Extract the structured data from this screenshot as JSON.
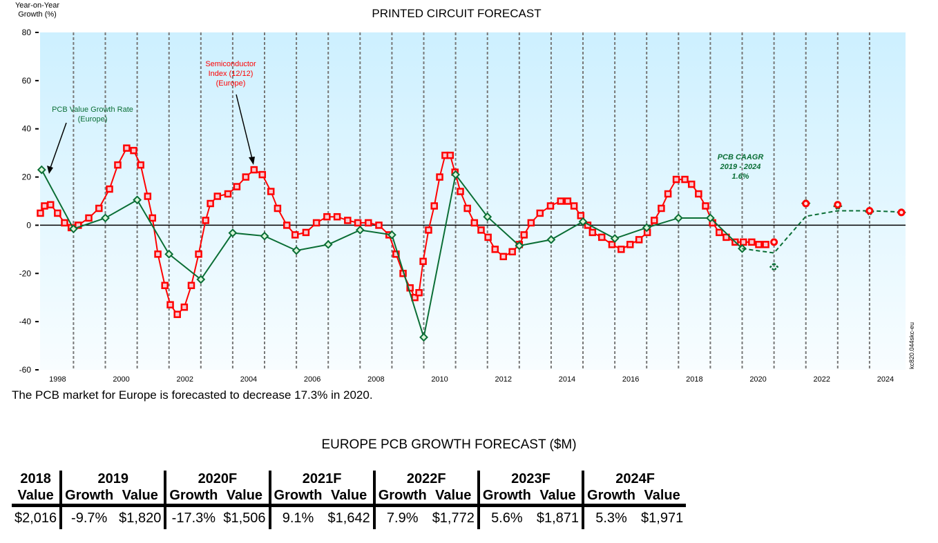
{
  "chart_data": {
    "type": "line",
    "title": "PRINTED CIRCUIT FORECAST",
    "ylabel": "Year-on-Year Growth (%)",
    "xlabel": "",
    "ylim": [
      -60,
      80
    ],
    "yticks": [
      80,
      60,
      40,
      20,
      0,
      -20,
      -40,
      -60
    ],
    "xlim": [
      1997.0,
      2024.15
    ],
    "xticks": [
      {
        "label": "1998",
        "x": 1997.5
      },
      {
        "label": "2000",
        "x": 1999.5
      },
      {
        "label": "2002",
        "x": 2001.5
      },
      {
        "label": "2004",
        "x": 2003.5
      },
      {
        "label": "2006",
        "x": 2005.5
      },
      {
        "label": "2008",
        "x": 2007.5
      },
      {
        "label": "2010",
        "x": 2009.5
      },
      {
        "label": "2012",
        "x": 2011.5
      },
      {
        "label": "2014",
        "x": 2013.5
      },
      {
        "label": "2016",
        "x": 2015.5
      },
      {
        "label": "2018",
        "x": 2017.5
      },
      {
        "label": "2020",
        "x": 2019.5
      },
      {
        "label": "2022",
        "x": 2021.5
      },
      {
        "label": "2024",
        "x": 2023.5
      }
    ],
    "year_gridlines": [
      1998,
      1999,
      2000,
      2001,
      2002,
      2003,
      2004,
      2005,
      2006,
      2007,
      2008,
      2009,
      2010,
      2011,
      2012,
      2013,
      2014,
      2015,
      2016,
      2017,
      2018,
      2019,
      2020,
      2021,
      2022,
      2023
    ],
    "grid": true,
    "series": [
      {
        "name": "PCB Value Growth Rate (Europe)",
        "color": "#0a6e35",
        "marker": "diamond",
        "style": "solid",
        "x": [
          1997.0,
          1998.0,
          1999.0,
          2000.0,
          2001.0,
          2002.0,
          2003.0,
          2004.0,
          2005.0,
          2006.0,
          2007.0,
          2008.0,
          2009.0,
          2010.0,
          2011.0,
          2012.0,
          2013.0,
          2014.0,
          2015.0,
          2016.0,
          2017.0,
          2018.0,
          2019.0
        ],
        "values": [
          23,
          -1.5,
          3,
          10.5,
          -12,
          -22.5,
          -3.2,
          -4.5,
          -10.5,
          -8,
          -2,
          -4,
          -46.5,
          21,
          3.5,
          -8.5,
          -6,
          1.5,
          -5.5,
          -1,
          3,
          3,
          -9.7
        ]
      },
      {
        "name": "PCB Forecast (dashed)",
        "color": "#0a6e35",
        "marker": "none",
        "style": "dashed",
        "x": [
          2019.0,
          2020.0,
          2021.0,
          2022.0,
          2023.0,
          2024.0
        ],
        "values": [
          -9.7,
          -11.5,
          3.7,
          6,
          6,
          5.5
        ]
      },
      {
        "name": "PCB Forecast Annual",
        "color": "#0a6e35",
        "marker": "diamond-dashed",
        "style": "none",
        "x": [
          2020.0,
          2021.0,
          2022.0,
          2023.0,
          2024.0
        ],
        "values": [
          -17.3,
          9.1,
          7.9,
          5.6,
          5.3
        ]
      },
      {
        "name": "Semiconductor Forecast",
        "color": "#ff0000",
        "marker": "circle",
        "style": "none",
        "x": [
          2020.0,
          2021.0,
          2022.0,
          2023.0,
          2024.0
        ],
        "values": [
          -7,
          9,
          8.5,
          6,
          5.3
        ]
      },
      {
        "name": "Semiconductor Index (12/12) (Europe)",
        "color": "#ff0000",
        "marker": "square",
        "style": "solid",
        "x": [
          1996.96,
          1997.09,
          1997.28,
          1997.5,
          1997.72,
          1997.93,
          1998.15,
          1998.48,
          1998.8,
          1999.13,
          1999.39,
          1999.67,
          1999.89,
          2000.11,
          2000.33,
          2000.48,
          2000.65,
          2000.87,
          2001.04,
          2001.26,
          2001.48,
          2001.7,
          2001.93,
          2002.15,
          2002.3,
          2002.52,
          2002.85,
          2003.13,
          2003.41,
          2003.67,
          2003.93,
          2004.2,
          2004.41,
          2004.7,
          2004.96,
          2005.3,
          2005.63,
          2005.96,
          2006.28,
          2006.61,
          2006.93,
          2007.26,
          2007.59,
          2007.91,
          2008.13,
          2008.35,
          2008.57,
          2008.72,
          2008.85,
          2008.98,
          2009.15,
          2009.33,
          2009.5,
          2009.67,
          2009.83,
          2009.98,
          2010.15,
          2010.37,
          2010.59,
          2010.8,
          2011.02,
          2011.24,
          2011.5,
          2011.78,
          2012.0,
          2012.15,
          2012.37,
          2012.65,
          2012.98,
          2013.3,
          2013.52,
          2013.72,
          2013.93,
          2014.15,
          2014.3,
          2014.59,
          2014.91,
          2015.2,
          2015.48,
          2015.76,
          2016.02,
          2016.24,
          2016.46,
          2016.67,
          2016.93,
          2017.2,
          2017.41,
          2017.63,
          2017.85,
          2018.07,
          2018.28,
          2018.5,
          2018.78,
          2019.04,
          2019.3,
          2019.52,
          2019.74
        ],
        "values": [
          5,
          8,
          8.5,
          5,
          1,
          -1,
          0,
          3,
          7,
          15,
          25,
          32,
          31,
          25,
          12,
          3,
          -12,
          -25,
          -33,
          -37,
          -34,
          -25,
          -12,
          2,
          9,
          12,
          13,
          16,
          20,
          23,
          21,
          14,
          7,
          0,
          -4,
          -3,
          1,
          3.5,
          3.5,
          2,
          1,
          1,
          0,
          -4,
          -12,
          -20,
          -26,
          -30,
          -28,
          -15,
          -2,
          8,
          20,
          29,
          29,
          22,
          14,
          7,
          1,
          -2,
          -5,
          -10,
          -13,
          -11,
          -8,
          -4,
          1,
          5,
          8,
          10,
          10,
          8,
          4,
          0,
          -3,
          -5,
          -8,
          -10,
          -8,
          -6,
          -3,
          2,
          7,
          13,
          19,
          19,
          17,
          13,
          8,
          1,
          -3,
          -5,
          -7,
          -7,
          -7,
          -8,
          -8
        ]
      }
    ],
    "annotations": [
      {
        "id": "pcb",
        "lines": [
          "PCB Value Growth Rate",
          "(Europe)"
        ],
        "color": "#0a6e35"
      },
      {
        "id": "semi",
        "lines": [
          "Semiconductor",
          "Index (12/12)",
          "(Europe)"
        ],
        "color": "#ff0000"
      },
      {
        "id": "caagr",
        "lines": [
          "PCB CAAGR",
          "2019 - 2024",
          "1.6%"
        ],
        "color": "#0a6e35"
      }
    ],
    "side_code": "kc820.044skc-eu"
  },
  "header": {
    "ylabel_line1": "Year-on-Year",
    "ylabel_line2": "Growth (%)",
    "title": "PRINTED CIRCUIT FORECAST"
  },
  "note": "The PCB market for Europe is forecasted to decrease 17.3% in 2020.",
  "table": {
    "title": "EUROPE PCB GROWTH FORECAST ($M)",
    "years": [
      "2018",
      "2019",
      "2020F",
      "2021F",
      "2022F",
      "2023F",
      "2024F"
    ],
    "sub_growth": "Growth",
    "sub_value": "Value",
    "row": {
      "v2018": "$2,016",
      "g2019": "-9.7%",
      "v2019": "$1,820",
      "g2020": "-17.3%",
      "v2020": "$1,506",
      "g2021": "9.1%",
      "v2021": "$1,642",
      "g2022": "7.9%",
      "v2022": "$1,772",
      "g2023": "5.6%",
      "v2023": "$1,871",
      "g2024": "5.3%",
      "v2024": "$1,971"
    }
  }
}
